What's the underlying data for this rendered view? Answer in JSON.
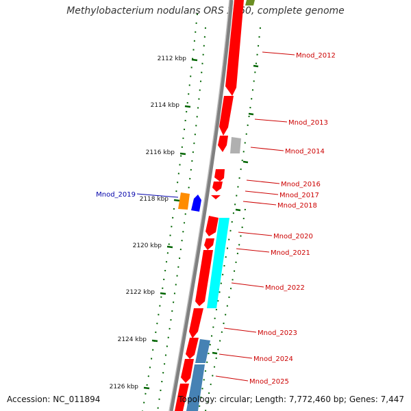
{
  "title": "Methylobacterium nodulans ORS 2060, complete genome",
  "footer": {
    "accession": "Accession: NC_011894",
    "summary": "Topology: circular; Length: 7,772,460 bp; Genes: 7,447"
  },
  "colors": {
    "backbone": "#808080",
    "tick": "#006400",
    "label_red": "#cc0000",
    "label_blue": "#0000aa",
    "gene_red": "#ff0000",
    "gene_cyan": "#00ffff",
    "gene_steelblue": "#4682b4",
    "gene_grey": "#b0b0b0",
    "gene_orange": "#ff8c00",
    "gene_blue": "#0000ff",
    "gene_olive": "#6b8e23"
  },
  "axis": {
    "unit": "kbp",
    "tick_labels": [
      "2112 kbp",
      "2114 kbp",
      "2116 kbp",
      "2118 kbp",
      "2120 kbp",
      "2122 kbp",
      "2124 kbp",
      "2126 kbp"
    ]
  },
  "gene_labels": [
    {
      "name": "Mnod_2012",
      "side": "right",
      "color": "red"
    },
    {
      "name": "Mnod_2013",
      "side": "right",
      "color": "red"
    },
    {
      "name": "Mnod_2014",
      "side": "right",
      "color": "red"
    },
    {
      "name": "Mnod_2016",
      "side": "right",
      "color": "red"
    },
    {
      "name": "Mnod_2017",
      "side": "right",
      "color": "red"
    },
    {
      "name": "Mnod_2018",
      "side": "right",
      "color": "red"
    },
    {
      "name": "Mnod_2019",
      "side": "left",
      "color": "blue"
    },
    {
      "name": "Mnod_2020",
      "side": "right",
      "color": "red"
    },
    {
      "name": "Mnod_2021",
      "side": "right",
      "color": "red"
    },
    {
      "name": "Mnod_2022",
      "side": "right",
      "color": "red"
    },
    {
      "name": "Mnod_2023",
      "side": "right",
      "color": "red"
    },
    {
      "name": "Mnod_2024",
      "side": "right",
      "color": "red"
    },
    {
      "name": "Mnod_2025",
      "side": "right",
      "color": "red"
    }
  ]
}
